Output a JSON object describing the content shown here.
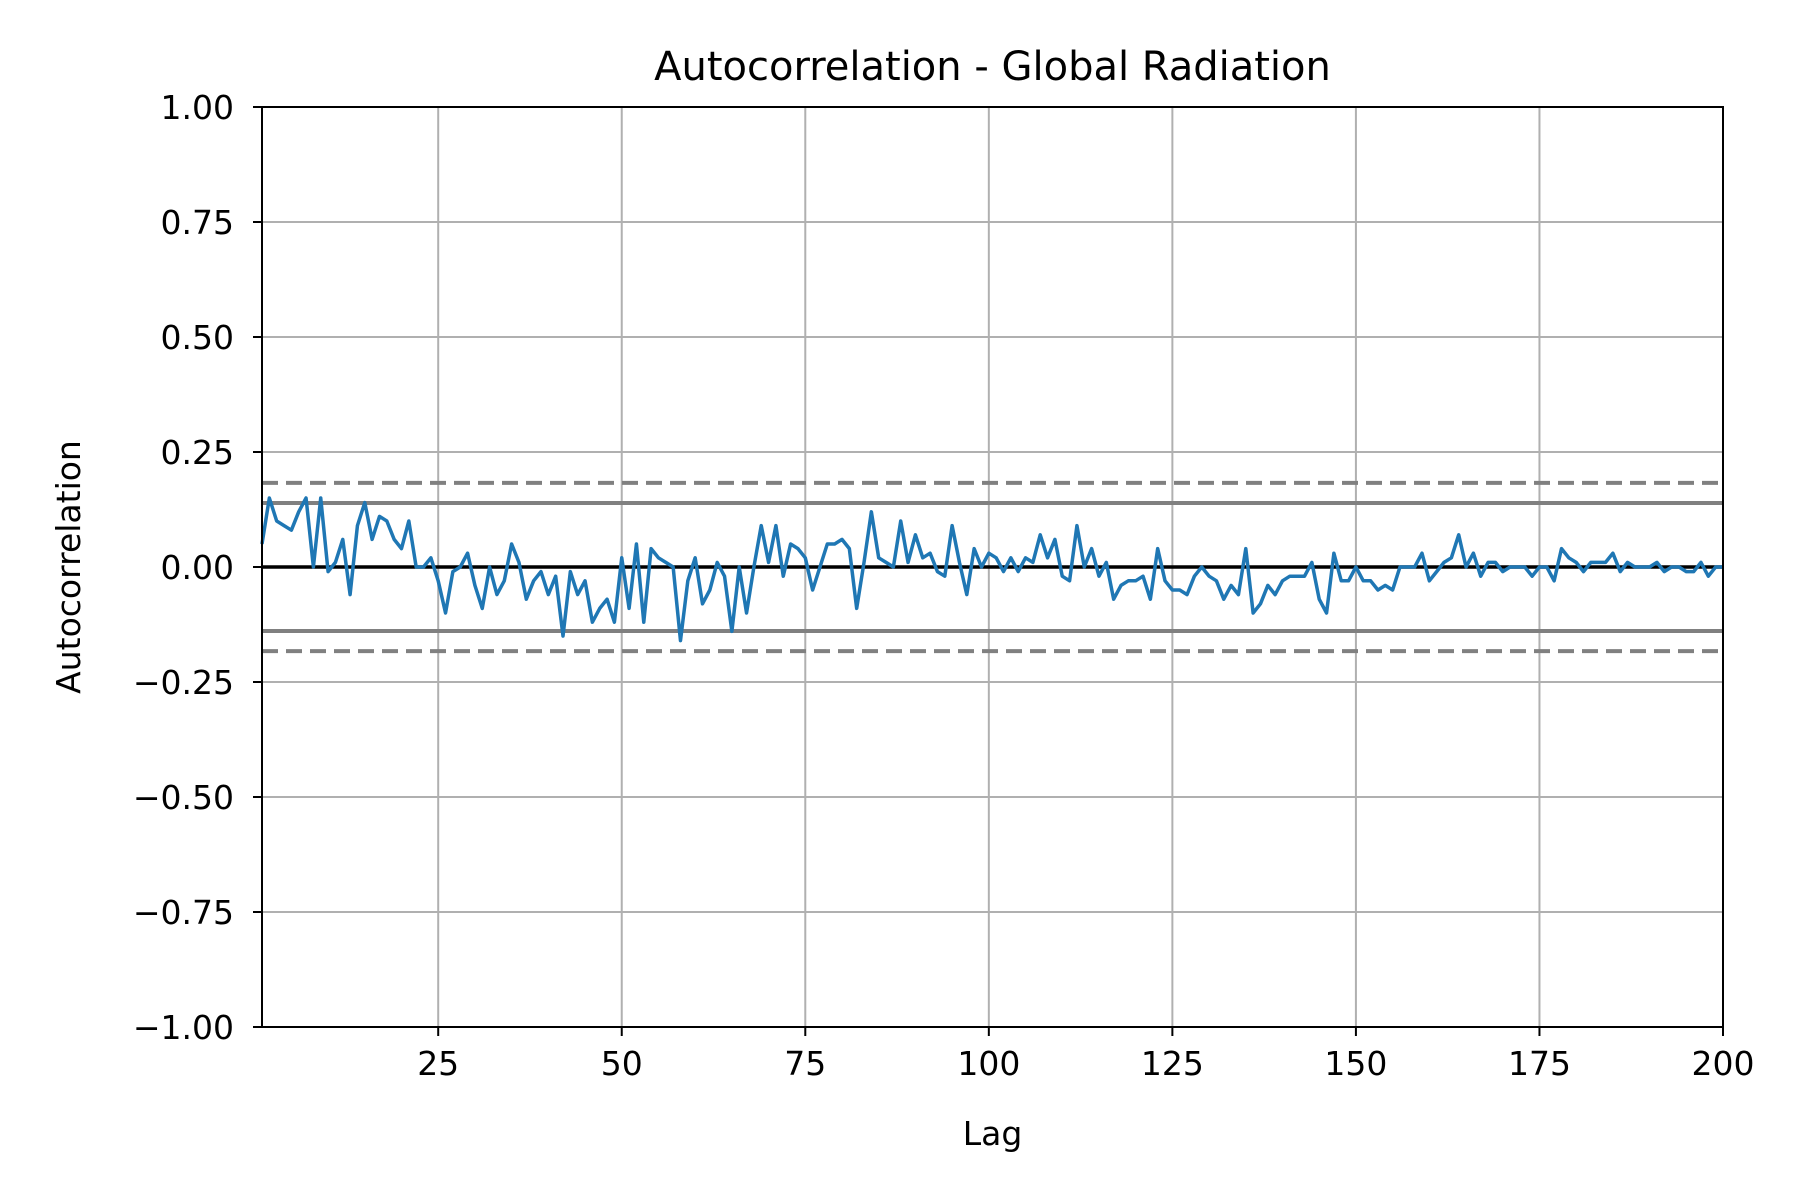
{
  "chart_data": {
    "type": "line",
    "title": "Autocorrelation - Global Radiation",
    "xlabel": "Lag",
    "ylabel": "Autocorrelation",
    "xlim": [
      1,
      200
    ],
    "ylim": [
      -1.0,
      1.0
    ],
    "grid": true,
    "x_ticks": [
      25,
      50,
      75,
      100,
      125,
      150,
      175,
      200
    ],
    "x_tick_labels": [
      "25",
      "50",
      "75",
      "100",
      "125",
      "150",
      "175",
      "200"
    ],
    "y_ticks": [
      1.0,
      0.75,
      0.5,
      0.25,
      0.0,
      -0.25,
      -0.5,
      -0.75,
      -1.0
    ],
    "y_tick_labels": [
      "1.00",
      "0.75",
      "0.50",
      "0.25",
      "0.00",
      "−0.25",
      "−0.50",
      "−0.75",
      "−1.00"
    ],
    "reference_lines": [
      {
        "name": "zero",
        "value": 0.0,
        "style": "solid",
        "color": "#000000"
      },
      {
        "name": "ci95-upper",
        "value": 0.139,
        "style": "solid",
        "color": "#808080"
      },
      {
        "name": "ci95-lower",
        "value": -0.139,
        "style": "solid",
        "color": "#808080"
      },
      {
        "name": "ci99-upper",
        "value": 0.183,
        "style": "dashed",
        "color": "#808080"
      },
      {
        "name": "ci99-lower",
        "value": -0.183,
        "style": "dashed",
        "color": "#808080"
      }
    ],
    "series": [
      {
        "name": "autocorrelation",
        "color": "#1f77b4",
        "x_start": 1,
        "values": [
          0.05,
          0.15,
          0.1,
          0.09,
          0.08,
          0.12,
          0.15,
          0.0,
          0.15,
          -0.01,
          0.01,
          0.06,
          -0.06,
          0.09,
          0.14,
          0.06,
          0.11,
          0.1,
          0.06,
          0.04,
          0.1,
          0.0,
          0.0,
          0.02,
          -0.03,
          -0.1,
          -0.01,
          0.0,
          0.03,
          -0.04,
          -0.09,
          0.0,
          -0.06,
          -0.03,
          0.05,
          0.01,
          -0.07,
          -0.03,
          -0.01,
          -0.06,
          -0.02,
          -0.15,
          -0.01,
          -0.06,
          -0.03,
          -0.12,
          -0.09,
          -0.07,
          -0.12,
          0.02,
          -0.09,
          0.05,
          -0.12,
          0.04,
          0.02,
          0.01,
          0.0,
          -0.16,
          -0.03,
          0.02,
          -0.08,
          -0.05,
          0.01,
          -0.02,
          -0.14,
          0.0,
          -0.1,
          0.0,
          0.09,
          0.01,
          0.09,
          -0.02,
          0.05,
          0.04,
          0.02,
          -0.05,
          0.0,
          0.05,
          0.05,
          0.06,
          0.04,
          -0.09,
          0.01,
          0.12,
          0.02,
          0.01,
          0.0,
          0.1,
          0.01,
          0.07,
          0.02,
          0.03,
          -0.01,
          -0.02,
          0.09,
          0.01,
          -0.06,
          0.04,
          0.0,
          0.03,
          0.02,
          -0.01,
          0.02,
          -0.01,
          0.02,
          0.01,
          0.07,
          0.02,
          0.06,
          -0.02,
          -0.03,
          0.09,
          0.0,
          0.04,
          -0.02,
          0.01,
          -0.07,
          -0.04,
          -0.03,
          -0.03,
          -0.02,
          -0.07,
          0.04,
          -0.03,
          -0.05,
          -0.05,
          -0.06,
          -0.02,
          0.0,
          -0.02,
          -0.03,
          -0.07,
          -0.04,
          -0.06,
          0.04,
          -0.1,
          -0.08,
          -0.04,
          -0.06,
          -0.03,
          -0.02,
          -0.02,
          -0.02,
          0.01,
          -0.07,
          -0.1,
          0.03,
          -0.03,
          -0.03,
          0.0,
          -0.03,
          -0.03,
          -0.05,
          -0.04,
          -0.05,
          0.0,
          0.0,
          0.0,
          0.03,
          -0.03,
          -0.01,
          0.01,
          0.02,
          0.07,
          0.0,
          0.03,
          -0.02,
          0.01,
          0.01,
          -0.01,
          0.0,
          0.0,
          0.0,
          -0.02,
          0.0,
          0.0,
          -0.03,
          0.04,
          0.02,
          0.01,
          -0.01,
          0.01,
          0.01,
          0.01,
          0.03,
          -0.01,
          0.01,
          0.0,
          0.0,
          0.0,
          0.01,
          -0.01,
          0.0,
          0.0,
          -0.01,
          -0.01,
          0.01,
          -0.02,
          0.0,
          0.0
        ]
      }
    ]
  }
}
